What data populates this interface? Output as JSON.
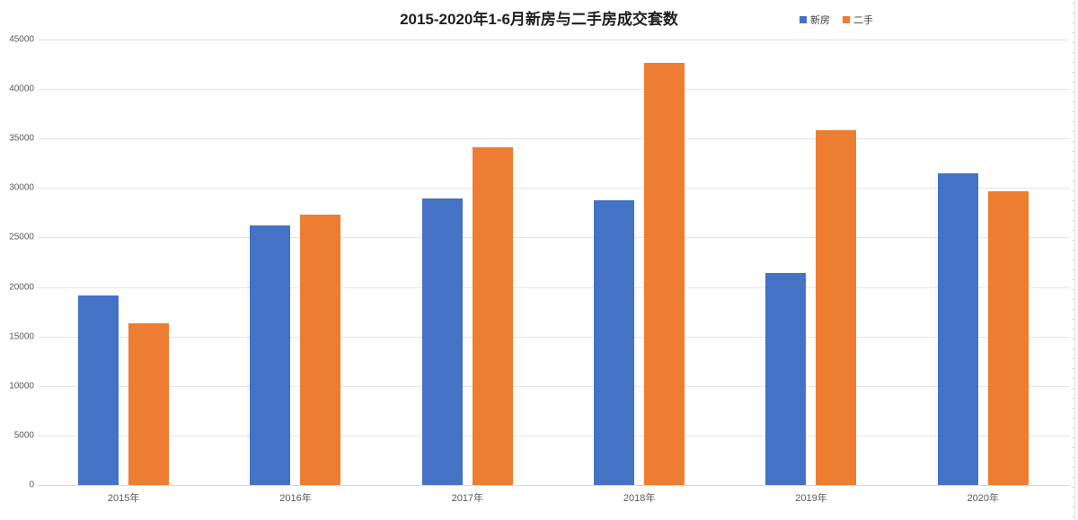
{
  "chart_data": {
    "type": "bar",
    "title": "2015-2020年1-6月新房与二手房成交套数",
    "categories": [
      "2015年",
      "2016年",
      "2017年",
      "2018年",
      "2019年",
      "2020年"
    ],
    "series": [
      {
        "name": "新房",
        "color": "#4472C4",
        "values": [
          19100,
          26200,
          28900,
          28800,
          21400,
          31500
        ]
      },
      {
        "name": "二手",
        "color": "#ED7D31",
        "values": [
          16300,
          27300,
          34100,
          42600,
          35800,
          29700
        ]
      }
    ],
    "xlabel": "",
    "ylabel": "",
    "ylim": [
      0,
      45000
    ],
    "yticks": [
      0,
      5000,
      10000,
      15000,
      20000,
      25000,
      30000,
      35000,
      40000,
      45000
    ],
    "grid": true,
    "legend_position": "top-right",
    "gridline_color": "#e4e4e4",
    "axis_label_color": "#595959",
    "title_color": "#1f1f1f"
  }
}
